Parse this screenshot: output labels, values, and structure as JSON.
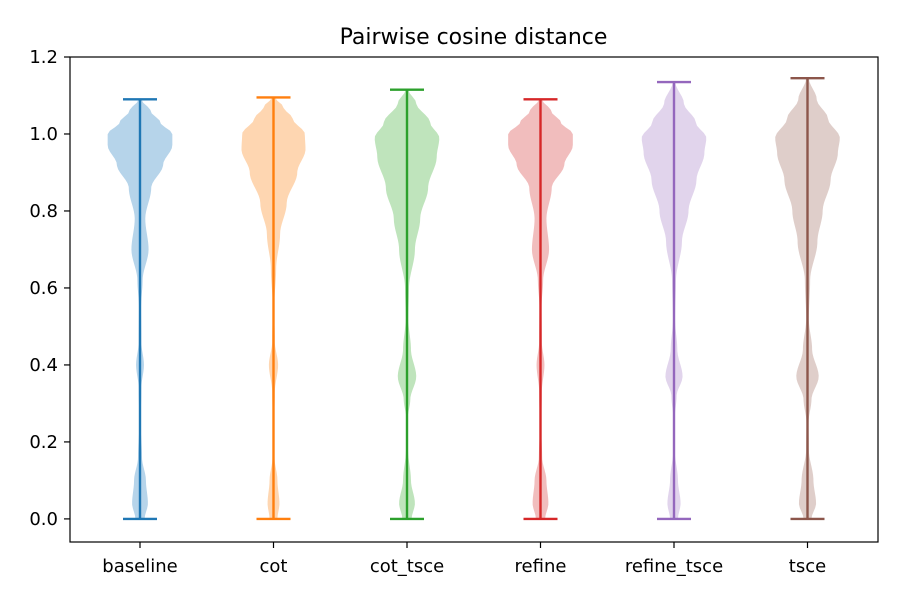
{
  "chart_data": {
    "type": "violin",
    "title": "Pairwise cosine distance",
    "xlabel": "",
    "ylabel": "",
    "categories": [
      "baseline",
      "cot",
      "cot_tsce",
      "refine",
      "refine_tsce",
      "tsce"
    ],
    "ylim": [
      -0.06,
      1.2
    ],
    "yticks": [
      0.0,
      0.2,
      0.4,
      0.6,
      0.8,
      1.0,
      1.2
    ],
    "ytick_labels": [
      "0.0",
      "0.2",
      "0.4",
      "0.6",
      "0.8",
      "1.0",
      "1.2"
    ],
    "grid": false,
    "series": [
      {
        "category": "baseline",
        "min": 0.0,
        "max": 1.09,
        "color": "#1f77b4",
        "fill": "#a9cce6",
        "density_profile": [
          [
            0.0,
            0.14
          ],
          [
            0.04,
            0.24
          ],
          [
            0.1,
            0.18
          ],
          [
            0.16,
            0.06
          ],
          [
            0.25,
            0.02
          ],
          [
            0.34,
            0.04
          ],
          [
            0.4,
            0.12
          ],
          [
            0.46,
            0.04
          ],
          [
            0.55,
            0.03
          ],
          [
            0.62,
            0.08
          ],
          [
            0.7,
            0.26
          ],
          [
            0.78,
            0.16
          ],
          [
            0.86,
            0.34
          ],
          [
            0.92,
            0.7
          ],
          [
            0.97,
            0.98
          ],
          [
            1.0,
            0.98
          ],
          [
            1.03,
            0.62
          ],
          [
            1.06,
            0.32
          ],
          [
            1.09,
            0.04
          ]
        ]
      },
      {
        "category": "cot",
        "min": 0.0,
        "max": 1.095,
        "color": "#ff7f0e",
        "fill": "#fecfa3",
        "density_profile": [
          [
            0.0,
            0.12
          ],
          [
            0.04,
            0.18
          ],
          [
            0.1,
            0.12
          ],
          [
            0.16,
            0.03
          ],
          [
            0.25,
            0.02
          ],
          [
            0.33,
            0.04
          ],
          [
            0.4,
            0.14
          ],
          [
            0.46,
            0.04
          ],
          [
            0.55,
            0.02
          ],
          [
            0.65,
            0.08
          ],
          [
            0.74,
            0.2
          ],
          [
            0.82,
            0.4
          ],
          [
            0.9,
            0.72
          ],
          [
            0.96,
            0.97
          ],
          [
            1.0,
            0.95
          ],
          [
            1.04,
            0.58
          ],
          [
            1.07,
            0.3
          ],
          [
            1.095,
            0.04
          ]
        ]
      },
      {
        "category": "cot_tsce",
        "min": 0.0,
        "max": 1.115,
        "color": "#2ca02c",
        "fill": "#b4dfb0",
        "density_profile": [
          [
            0.0,
            0.14
          ],
          [
            0.04,
            0.24
          ],
          [
            0.1,
            0.12
          ],
          [
            0.18,
            0.03
          ],
          [
            0.26,
            0.02
          ],
          [
            0.31,
            0.1
          ],
          [
            0.37,
            0.28
          ],
          [
            0.44,
            0.12
          ],
          [
            0.52,
            0.04
          ],
          [
            0.6,
            0.06
          ],
          [
            0.7,
            0.24
          ],
          [
            0.78,
            0.4
          ],
          [
            0.86,
            0.64
          ],
          [
            0.94,
            0.9
          ],
          [
            0.99,
            0.98
          ],
          [
            1.03,
            0.7
          ],
          [
            1.08,
            0.28
          ],
          [
            1.115,
            0.04
          ]
        ]
      },
      {
        "category": "refine",
        "min": 0.0,
        "max": 1.09,
        "color": "#d62728",
        "fill": "#eeb1b1",
        "density_profile": [
          [
            0.0,
            0.14
          ],
          [
            0.04,
            0.24
          ],
          [
            0.1,
            0.18
          ],
          [
            0.16,
            0.05
          ],
          [
            0.24,
            0.02
          ],
          [
            0.33,
            0.04
          ],
          [
            0.4,
            0.12
          ],
          [
            0.46,
            0.04
          ],
          [
            0.55,
            0.03
          ],
          [
            0.62,
            0.08
          ],
          [
            0.7,
            0.26
          ],
          [
            0.78,
            0.18
          ],
          [
            0.86,
            0.34
          ],
          [
            0.92,
            0.72
          ],
          [
            0.97,
            0.98
          ],
          [
            1.0,
            0.98
          ],
          [
            1.03,
            0.62
          ],
          [
            1.06,
            0.32
          ],
          [
            1.09,
            0.04
          ]
        ]
      },
      {
        "category": "refine_tsce",
        "min": 0.0,
        "max": 1.135,
        "color": "#9467bd",
        "fill": "#dccde9",
        "density_profile": [
          [
            0.0,
            0.12
          ],
          [
            0.04,
            0.2
          ],
          [
            0.1,
            0.12
          ],
          [
            0.18,
            0.02
          ],
          [
            0.26,
            0.02
          ],
          [
            0.32,
            0.08
          ],
          [
            0.37,
            0.26
          ],
          [
            0.44,
            0.1
          ],
          [
            0.52,
            0.03
          ],
          [
            0.62,
            0.06
          ],
          [
            0.72,
            0.24
          ],
          [
            0.8,
            0.44
          ],
          [
            0.88,
            0.68
          ],
          [
            0.95,
            0.92
          ],
          [
            0.99,
            0.98
          ],
          [
            1.03,
            0.66
          ],
          [
            1.08,
            0.3
          ],
          [
            1.135,
            0.04
          ]
        ]
      },
      {
        "category": "tsce",
        "min": 0.0,
        "max": 1.145,
        "color": "#8c564b",
        "fill": "#d9c6c1",
        "density_profile": [
          [
            0.0,
            0.12
          ],
          [
            0.04,
            0.26
          ],
          [
            0.1,
            0.18
          ],
          [
            0.18,
            0.04
          ],
          [
            0.25,
            0.03
          ],
          [
            0.31,
            0.12
          ],
          [
            0.37,
            0.34
          ],
          [
            0.44,
            0.14
          ],
          [
            0.52,
            0.04
          ],
          [
            0.62,
            0.08
          ],
          [
            0.72,
            0.3
          ],
          [
            0.8,
            0.46
          ],
          [
            0.88,
            0.7
          ],
          [
            0.95,
            0.92
          ],
          [
            0.99,
            0.98
          ],
          [
            1.04,
            0.62
          ],
          [
            1.09,
            0.28
          ],
          [
            1.145,
            0.04
          ]
        ]
      }
    ]
  }
}
